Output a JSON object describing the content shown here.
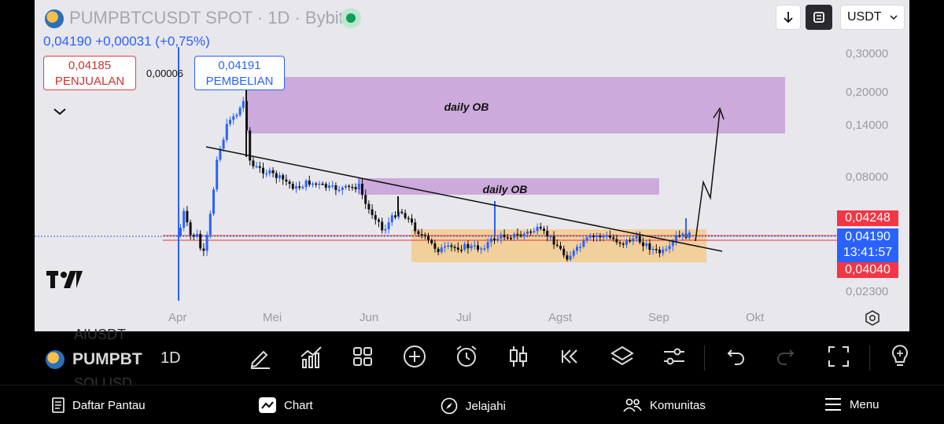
{
  "header": {
    "title": "PUMPBTCUSDT SPOT · 1D · Bybit",
    "last_price": "0,04190",
    "change": "+0,00031 (+0,75%)"
  },
  "trade": {
    "sell_price": "0,04185",
    "sell_label": "PENJUALAN",
    "spread": "0,00006",
    "buy_price": "0,04191",
    "buy_label": "PEMBELIAN"
  },
  "controls": {
    "currency": "USDT"
  },
  "annotations": {
    "upper_ob": "daily OB",
    "lower_ob": "daily OB"
  },
  "price_axis": [
    "0,30000",
    "0,20000",
    "0,14000",
    "0,08000",
    "0,02300"
  ],
  "price_tags": {
    "high": "0,04248",
    "current": "0,04190",
    "countdown": "13:41:57",
    "low": "0,04040"
  },
  "time_axis": [
    "Apr",
    "Mei",
    "Jun",
    "Jul",
    "Agst",
    "Sep",
    "Okt"
  ],
  "toolbar": {
    "symbol": "PUMPBT",
    "ghost_top": "AIUSDT",
    "ghost_bottom": "SOLUSD",
    "interval": "1D"
  },
  "nav": {
    "watchlist": "Daftar Pantau",
    "chart": "Chart",
    "explore": "Jelajahi",
    "community": "Komunitas",
    "menu": "Menu"
  },
  "colors": {
    "up": "#2962ff",
    "down": "#111111",
    "ob_zone": "#c79fd6",
    "range_zone": "#f1c98a",
    "sell": "#e53935",
    "buy": "#2962ff"
  }
}
